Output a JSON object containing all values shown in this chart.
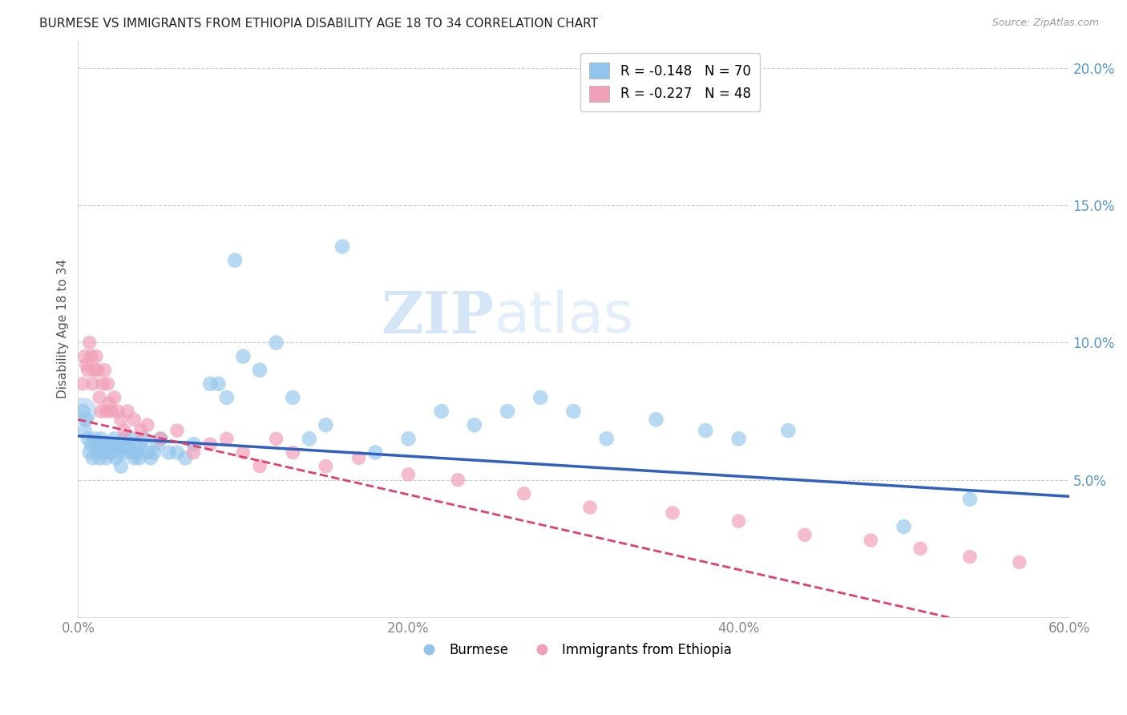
{
  "title": "BURMESE VS IMMIGRANTS FROM ETHIOPIA DISABILITY AGE 18 TO 34 CORRELATION CHART",
  "source": "Source: ZipAtlas.com",
  "ylabel": "Disability Age 18 to 34",
  "xmin": 0.0,
  "xmax": 0.6,
  "ymin": 0.0,
  "ymax": 0.21,
  "legend1_label": "R = -0.148   N = 70",
  "legend2_label": "R = -0.227   N = 48",
  "legend_bottom1": "Burmese",
  "legend_bottom2": "Immigrants from Ethiopia",
  "watermark_zip": "ZIP",
  "watermark_atlas": "atlas",
  "blue_color": "#92C5EB",
  "pink_color": "#F0A0B8",
  "trend_blue": "#3060C0",
  "trend_pink": "#E04070",
  "burmese_x": [
    0.003,
    0.004,
    0.005,
    0.006,
    0.007,
    0.008,
    0.009,
    0.01,
    0.011,
    0.012,
    0.013,
    0.014,
    0.015,
    0.016,
    0.017,
    0.018,
    0.019,
    0.02,
    0.021,
    0.022,
    0.023,
    0.024,
    0.025,
    0.026,
    0.027,
    0.028,
    0.029,
    0.03,
    0.032,
    0.033,
    0.034,
    0.035,
    0.036,
    0.037,
    0.038,
    0.04,
    0.042,
    0.044,
    0.046,
    0.048,
    0.05,
    0.055,
    0.06,
    0.065,
    0.07,
    0.08,
    0.085,
    0.09,
    0.095,
    0.1,
    0.11,
    0.12,
    0.13,
    0.14,
    0.15,
    0.16,
    0.18,
    0.2,
    0.22,
    0.24,
    0.26,
    0.28,
    0.3,
    0.32,
    0.35,
    0.38,
    0.4,
    0.43,
    0.5,
    0.54
  ],
  "burmese_y": [
    0.075,
    0.068,
    0.072,
    0.065,
    0.06,
    0.063,
    0.058,
    0.065,
    0.062,
    0.06,
    0.058,
    0.065,
    0.063,
    0.06,
    0.058,
    0.063,
    0.062,
    0.06,
    0.063,
    0.065,
    0.058,
    0.063,
    0.06,
    0.055,
    0.062,
    0.065,
    0.06,
    0.062,
    0.065,
    0.06,
    0.058,
    0.063,
    0.06,
    0.058,
    0.062,
    0.065,
    0.06,
    0.058,
    0.06,
    0.063,
    0.065,
    0.06,
    0.06,
    0.058,
    0.063,
    0.085,
    0.085,
    0.08,
    0.13,
    0.095,
    0.09,
    0.1,
    0.08,
    0.065,
    0.07,
    0.135,
    0.06,
    0.065,
    0.075,
    0.07,
    0.075,
    0.08,
    0.075,
    0.065,
    0.072,
    0.068,
    0.065,
    0.068,
    0.033,
    0.043
  ],
  "ethiopia_x": [
    0.003,
    0.004,
    0.005,
    0.006,
    0.007,
    0.008,
    0.009,
    0.01,
    0.011,
    0.012,
    0.013,
    0.014,
    0.015,
    0.016,
    0.017,
    0.018,
    0.019,
    0.02,
    0.022,
    0.024,
    0.026,
    0.028,
    0.03,
    0.034,
    0.038,
    0.042,
    0.05,
    0.06,
    0.07,
    0.08,
    0.09,
    0.1,
    0.11,
    0.12,
    0.13,
    0.15,
    0.17,
    0.2,
    0.23,
    0.27,
    0.31,
    0.36,
    0.4,
    0.44,
    0.48,
    0.51,
    0.54,
    0.57
  ],
  "ethiopia_y": [
    0.085,
    0.095,
    0.092,
    0.09,
    0.1,
    0.095,
    0.085,
    0.09,
    0.095,
    0.09,
    0.08,
    0.075,
    0.085,
    0.09,
    0.075,
    0.085,
    0.078,
    0.075,
    0.08,
    0.075,
    0.072,
    0.068,
    0.075,
    0.072,
    0.068,
    0.07,
    0.065,
    0.068,
    0.06,
    0.063,
    0.065,
    0.06,
    0.055,
    0.065,
    0.06,
    0.055,
    0.058,
    0.052,
    0.05,
    0.045,
    0.04,
    0.038,
    0.035,
    0.03,
    0.028,
    0.025,
    0.022,
    0.02
  ]
}
